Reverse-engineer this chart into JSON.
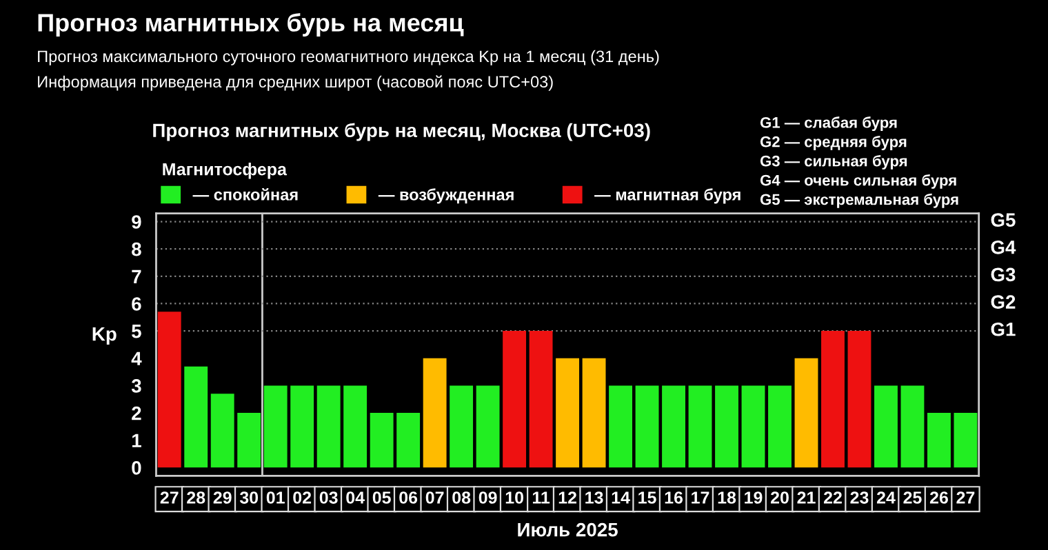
{
  "chart_data": {
    "type": "bar",
    "title": "Прогноз магнитных бурь на месяц",
    "subtitle": "Прогноз максимального суточного геомагнитного индекса Kp на 1 месяц (31 день)\nИнформация приведена для средних широт (часовой пояс UTC+03)",
    "xlabel": "Июль 2025",
    "ylabel": "Kp",
    "legend_title": "Магнитосфера",
    "annotations": [
      "Прогноз магнитных бурь на месяц, Москва (UTC+03)",
      "G1 — слабая буря",
      "G2 — средняя буря",
      "G3 — сильная буря",
      "G4 — очень сильная буря",
      "G5 — экстремальная буря"
    ],
    "categories": [
      "27",
      "28",
      "29",
      "30",
      "01",
      "02",
      "03",
      "04",
      "05",
      "06",
      "07",
      "08",
      "09",
      "10",
      "11",
      "12",
      "13",
      "14",
      "15",
      "16",
      "17",
      "18",
      "19",
      "20",
      "21",
      "22",
      "23",
      "24",
      "25",
      "26",
      "27"
    ],
    "series": [
      {
        "name": "— спокойная",
        "color": "#22ee22",
        "values": [
          null,
          3.7,
          2.7,
          2,
          3,
          3,
          3,
          3,
          2,
          2,
          null,
          3,
          3,
          null,
          null,
          null,
          null,
          3,
          3,
          3,
          3,
          3,
          3,
          3,
          null,
          null,
          null,
          3,
          3,
          2,
          2
        ]
      },
      {
        "name": "— возбужденная",
        "color": "#ffbb00",
        "values": [
          null,
          null,
          null,
          null,
          null,
          null,
          null,
          null,
          null,
          null,
          4,
          null,
          null,
          null,
          null,
          4,
          4,
          null,
          null,
          null,
          null,
          null,
          null,
          null,
          4,
          null,
          null,
          null,
          null,
          null,
          null
        ]
      },
      {
        "name": "— магнитная буря",
        "color": "#ee1111",
        "values": [
          5.7,
          null,
          null,
          null,
          null,
          null,
          null,
          null,
          null,
          null,
          null,
          null,
          null,
          5,
          5,
          null,
          null,
          null,
          null,
          null,
          null,
          null,
          null,
          null,
          null,
          5,
          5,
          null,
          null,
          null,
          null
        ]
      }
    ],
    "ylim": [
      -0.3,
      9.3
    ],
    "yticks": [
      0,
      1,
      2,
      3,
      4,
      5,
      6,
      7,
      8,
      9
    ],
    "ref_lines": [
      {
        "axis": "x",
        "value": "01",
        "color": "#cccccc"
      },
      {
        "axis": "y",
        "value": 5,
        "label": "G1",
        "color": "#888888",
        "line_style": "dotted"
      },
      {
        "axis": "y",
        "value": 6,
        "label": "G2",
        "color": "#888888",
        "line_style": "dotted"
      },
      {
        "axis": "y",
        "value": 7,
        "label": "G3",
        "color": "#888888",
        "line_style": "dotted"
      },
      {
        "axis": "y",
        "value": 8,
        "label": "G4",
        "color": "#888888",
        "line_style": "dotted"
      },
      {
        "axis": "y",
        "value": 9,
        "label": "G5",
        "color": "#888888",
        "line_style": "dotted"
      }
    ],
    "legend": "top left"
  }
}
